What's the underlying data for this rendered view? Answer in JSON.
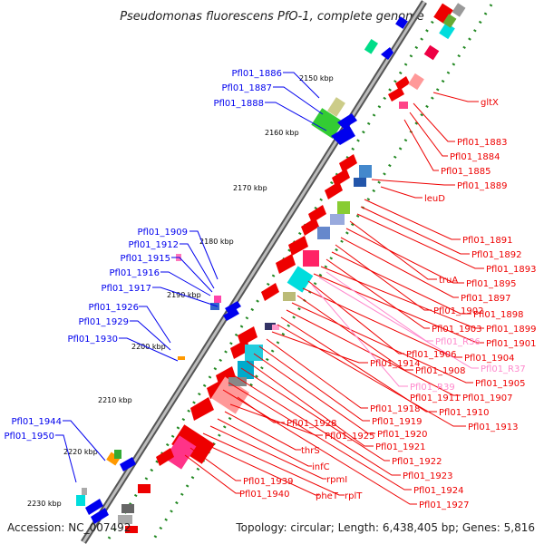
{
  "title": "Pseudomonas fluorescens PfO-1, complete genome",
  "accession": "Accession: NC_007492",
  "topology": "Topology: circular; Length: 6,438,405 bp; Genes: 5,816",
  "colors": {
    "forward": "#ee0000",
    "reverse": "#0000ee",
    "rna": "#ff88cc",
    "backbone": "#888888",
    "tick_dots": "#228822"
  },
  "kbp_ticks": [
    "2150 kbp",
    "2160 kbp",
    "2170 kbp",
    "2180 kbp",
    "2190 kbp",
    "2200 kbp",
    "2210 kbp",
    "2220 kbp",
    "2230 kbp"
  ],
  "left_labels": [
    "Pfl01_1886",
    "Pfl01_1887",
    "Pfl01_1888",
    "Pfl01_1909",
    "Pfl01_1912",
    "Pfl01_1915",
    "Pfl01_1916",
    "Pfl01_1917",
    "Pfl01_1926",
    "Pfl01_1929",
    "Pfl01_1930",
    "Pfl01_1944",
    "Pfl01_1950"
  ],
  "right_labels": [
    "gltX",
    "Pfl01_1883",
    "Pfl01_1884",
    "Pfl01_1885",
    "Pfl01_1889",
    "leuD",
    "Pfl01_1891",
    "Pfl01_1892",
    "Pfl01_1893",
    "truA",
    "Pfl01_1895",
    "Pfl01_1897",
    "Pfl01_1902",
    "Pfl01_1898",
    "Pfl01_1903",
    "Pfl01_1899",
    "Pfl01_R36",
    "Pfl01_1901",
    "Pfl01_1906",
    "Pfl01_1904",
    "Pfl01_R37",
    "Pfl01_1914",
    "Pfl01_1908",
    "Pfl01_1905",
    "Pfl01_R39",
    "Pfl01_1911",
    "Pfl01_1907",
    "Pfl01_1910",
    "Pfl01_1918",
    "Pfl01_1913",
    "Pfl01_1928",
    "Pfl01_1919",
    "Pfl01_1920",
    "Pfl01_1925",
    "Pfl01_1921",
    "thrS",
    "Pfl01_1922",
    "infC",
    "Pfl01_1923",
    "rpmI",
    "Pfl01_1939",
    "Pfl01_1924",
    "Pfl01_1940",
    "pheT",
    "rplT",
    "Pfl01_1927"
  ]
}
